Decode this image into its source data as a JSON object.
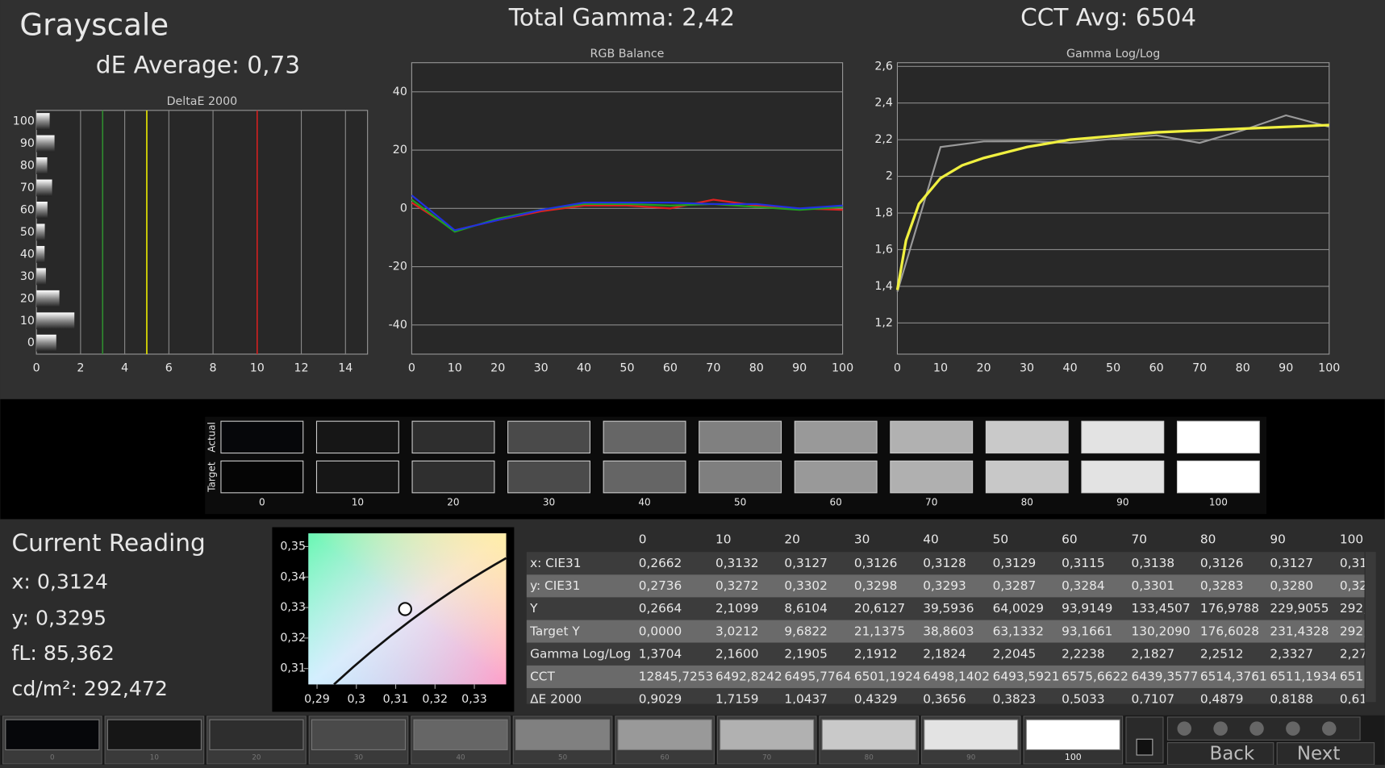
{
  "header": {
    "title": "Grayscale",
    "de_average": "dE Average: 0,73",
    "total_gamma": "Total Gamma: 2,42",
    "cct_avg": "CCT Avg: 6504"
  },
  "chart_data": [
    {
      "type": "hbar",
      "title": "DeltaE 2000",
      "categories": [
        "0",
        "10",
        "20",
        "30",
        "40",
        "50",
        "60",
        "70",
        "80",
        "90",
        "100"
      ],
      "values": [
        0.9,
        1.72,
        1.04,
        0.43,
        0.37,
        0.38,
        0.5,
        0.71,
        0.49,
        0.82,
        0.6
      ],
      "xlim": [
        0,
        15
      ],
      "xticks": [
        0,
        2,
        4,
        6,
        8,
        10,
        12,
        14
      ],
      "grid": true,
      "reference_lines": [
        {
          "value": 3,
          "color": "#2e8b2e"
        },
        {
          "value": 5,
          "color": "#e8e800"
        },
        {
          "value": 10,
          "color": "#d02020"
        }
      ]
    },
    {
      "type": "line",
      "title": "RGB Balance",
      "x": [
        0,
        10,
        20,
        30,
        40,
        50,
        60,
        70,
        80,
        90,
        100
      ],
      "xlim": [
        0,
        100
      ],
      "xticks": [
        0,
        10,
        20,
        30,
        40,
        50,
        60,
        70,
        80,
        90,
        100
      ],
      "ylim": [
        -50,
        50
      ],
      "yticks": [
        -40,
        -20,
        0,
        20,
        40
      ],
      "grid": true,
      "series": [
        {
          "color": "#e02020",
          "values": [
            2,
            -7.5,
            -4,
            -1,
            1,
            1,
            0,
            3,
            1,
            0,
            -0.5
          ]
        },
        {
          "color": "#20a020",
          "values": [
            3,
            -8,
            -3.5,
            -0.5,
            1.5,
            1.5,
            1,
            1.5,
            0.5,
            -0.5,
            0.5
          ]
        },
        {
          "color": "#2030e0",
          "values": [
            4.5,
            -7.5,
            -4,
            -0.5,
            2,
            2,
            2,
            1.5,
            1.5,
            0,
            1
          ]
        }
      ]
    },
    {
      "type": "line",
      "title": "Gamma Log/Log",
      "x": [
        0,
        10,
        20,
        30,
        40,
        50,
        60,
        70,
        80,
        90,
        100
      ],
      "xlim": [
        0,
        100
      ],
      "xticks": [
        0,
        10,
        20,
        30,
        40,
        50,
        60,
        70,
        80,
        90,
        100
      ],
      "ylim": [
        1.03,
        2.62
      ],
      "yticks": [
        {
          "value": 1.2,
          "label": "1,2"
        },
        {
          "value": 1.4,
          "label": "1,4"
        },
        {
          "value": 1.6,
          "label": "1,6"
        },
        {
          "value": 1.8,
          "label": "1,8"
        },
        2,
        {
          "value": 2.2,
          "label": "2,2"
        },
        {
          "value": 2.4,
          "label": "2,4"
        },
        {
          "value": 2.6,
          "label": "2,6"
        }
      ],
      "grid": true,
      "series": [
        {
          "color": "#9a9a9a",
          "values": [
            1.3704,
            2.16,
            2.1905,
            2.1912,
            2.1824,
            2.2045,
            2.2238,
            2.1827,
            2.2512,
            2.3327,
            2.27
          ]
        },
        {
          "color": "#f0f040",
          "x": [
            0,
            2,
            5,
            10,
            15,
            20,
            30,
            40,
            50,
            60,
            70,
            80,
            90,
            100
          ],
          "values": [
            1.38,
            1.65,
            1.85,
            1.99,
            2.06,
            2.1,
            2.16,
            2.2,
            2.22,
            2.24,
            2.25,
            2.26,
            2.27,
            2.28
          ]
        }
      ]
    }
  ],
  "patches": {
    "actual_label": "Actual",
    "target_label": "Target",
    "labels": [
      "0",
      "10",
      "20",
      "30",
      "40",
      "50",
      "60",
      "70",
      "80",
      "90",
      "100"
    ],
    "actual_colors": [
      "#06070a",
      "#161616",
      "#2e2e2e",
      "#4a4a4a",
      "#666666",
      "#808080",
      "#999999",
      "#b1b1b1",
      "#c9c9c9",
      "#e3e3e3",
      "#ffffff"
    ],
    "target_colors": [
      "#050505",
      "#161616",
      "#2f2f2f",
      "#4b4b4b",
      "#656565",
      "#7f7f7f",
      "#999999",
      "#b0b0b0",
      "#c8c8c8",
      "#e3e3e3",
      "#ffffff"
    ]
  },
  "reading": {
    "title": "Current Reading",
    "x": "x: 0,3124",
    "y": "y: 0,3295",
    "fl": "fL: 85,362",
    "cdm2": "cd/m²: 292,472"
  },
  "cie": {
    "xlim": [
      0.2878,
      0.3381
    ],
    "ylim": [
      0.3048,
      0.3543
    ],
    "xticks": [
      {
        "value": 0.29,
        "label": "0,29"
      },
      {
        "value": 0.3,
        "label": "0,3"
      },
      {
        "value": 0.31,
        "label": "0,31"
      },
      {
        "value": 0.32,
        "label": "0,32"
      },
      {
        "value": 0.33,
        "label": "0,33"
      }
    ],
    "yticks": [
      {
        "value": 0.31,
        "label": "0,31"
      },
      {
        "value": 0.32,
        "label": "0,32"
      },
      {
        "value": 0.33,
        "label": "0,33"
      },
      {
        "value": 0.34,
        "label": "0,34"
      },
      {
        "value": 0.35,
        "label": "0,35"
      }
    ],
    "point": {
      "x": 0.3124,
      "y": 0.3295
    }
  },
  "table": {
    "header": [
      "0",
      "10",
      "20",
      "30",
      "40",
      "50",
      "60",
      "70",
      "80",
      "90",
      "100"
    ],
    "rows": [
      [
        "x: CIE31",
        "0,2662",
        "0,3132",
        "0,3127",
        "0,3126",
        "0,3128",
        "0,3129",
        "0,3115",
        "0,3138",
        "0,3126",
        "0,3127",
        "0,31"
      ],
      [
        "y: CIE31",
        "0,2736",
        "0,3272",
        "0,3302",
        "0,3298",
        "0,3293",
        "0,3287",
        "0,3284",
        "0,3301",
        "0,3283",
        "0,3280",
        "0,32"
      ],
      [
        "Y",
        "0,2664",
        "2,1099",
        "8,6104",
        "20,6127",
        "39,5936",
        "64,0029",
        "93,9149",
        "133,4507",
        "176,9788",
        "229,9055",
        "292,"
      ],
      [
        "Target Y",
        "0,0000",
        "3,0212",
        "9,6822",
        "21,1375",
        "38,8603",
        "63,1332",
        "93,1661",
        "130,2090",
        "176,6028",
        "231,4328",
        "292,"
      ],
      [
        "Gamma Log/Log",
        "1,3704",
        "2,1600",
        "2,1905",
        "2,1912",
        "2,1824",
        "2,2045",
        "2,2238",
        "2,1827",
        "2,2512",
        "2,3327",
        "2,27"
      ],
      [
        "CCT",
        "12845,7253",
        "6492,8242",
        "6495,7764",
        "6501,1924",
        "6498,1402",
        "6493,5921",
        "6575,6622",
        "6439,3577",
        "6514,3761",
        "6511,1934",
        "651"
      ],
      [
        "ΔE 2000",
        "0,9029",
        "1,7159",
        "1,0437",
        "0,4329",
        "0,3656",
        "0,3823",
        "0,5033",
        "0,7107",
        "0,4879",
        "0,8188",
        "0,61"
      ]
    ]
  },
  "buttons": {
    "labels": [
      "0",
      "10",
      "20",
      "30",
      "40",
      "50",
      "60",
      "70",
      "80",
      "90",
      "100"
    ],
    "back": "Back",
    "next": "Next"
  }
}
